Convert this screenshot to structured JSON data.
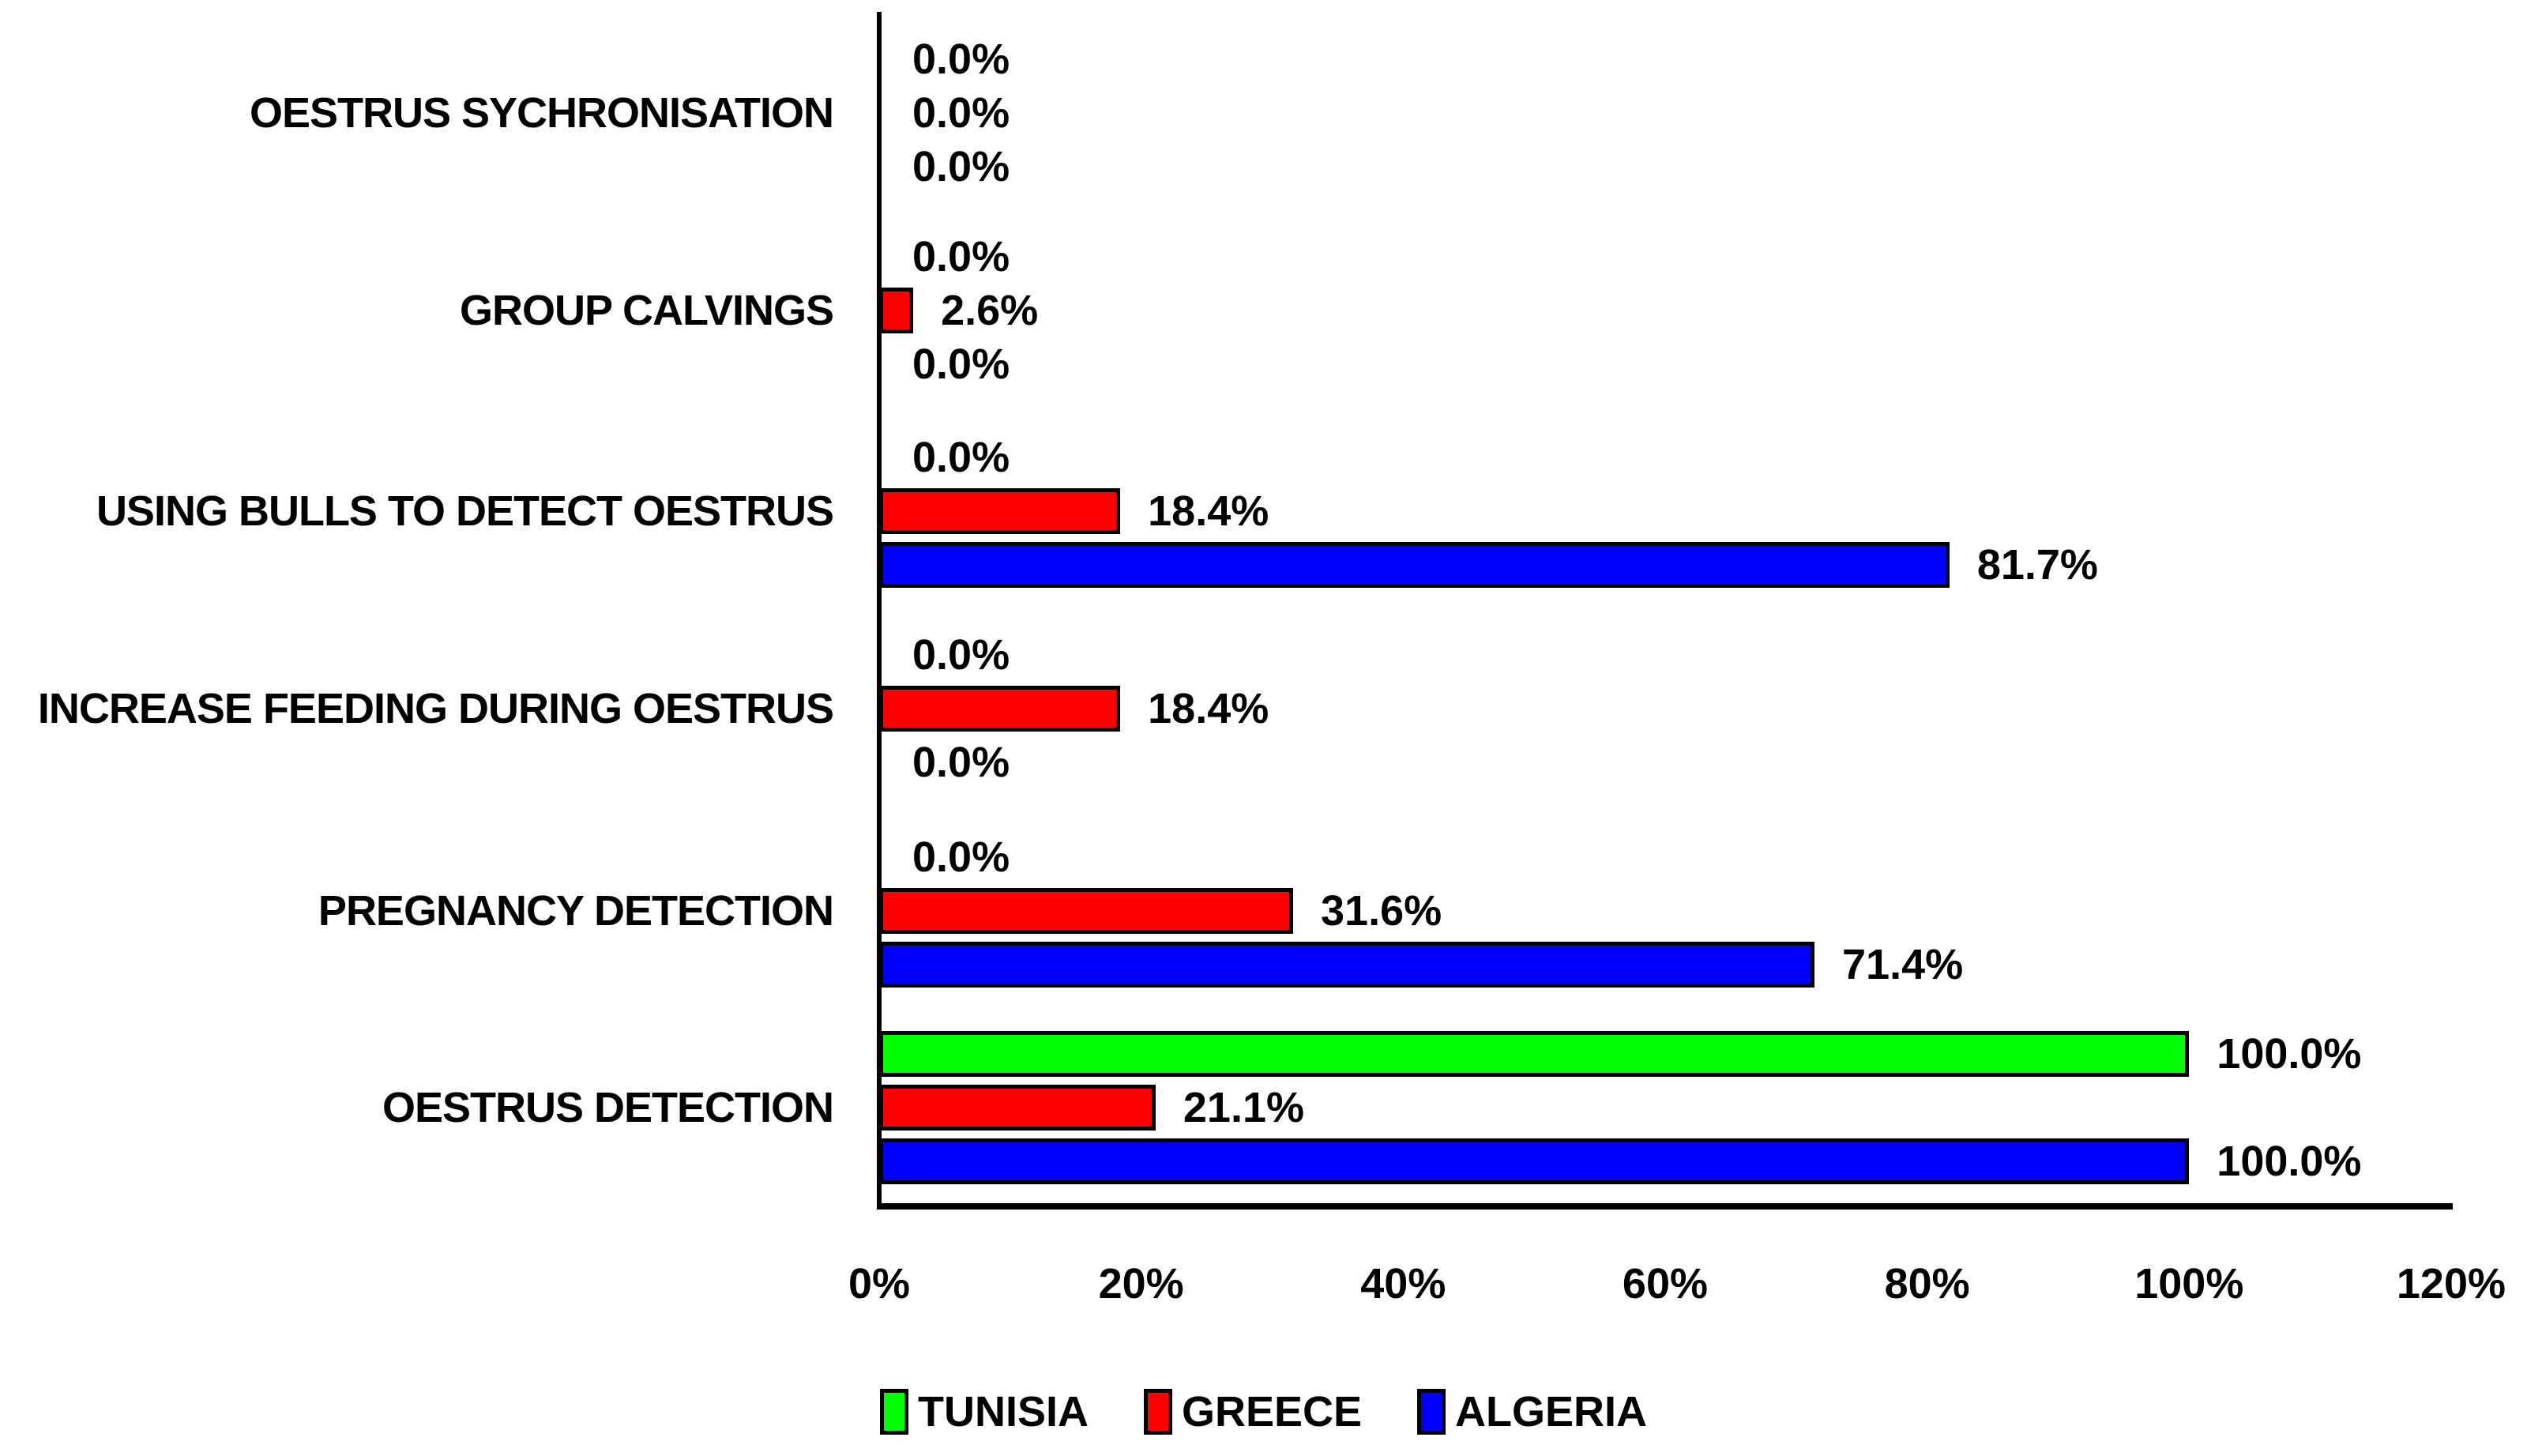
{
  "chart_data": {
    "type": "bar",
    "orientation": "horizontal",
    "title": "",
    "categories": [
      "OESTRUS SYCHRONISATION",
      "GROUP CALVINGS",
      "USING BULLS TO DETECT OESTRUS",
      "INCREASE FEEDING DURING OESTRUS",
      "PREGNANCY DETECTION",
      "OESTRUS DETECTION"
    ],
    "series": [
      {
        "name": "TUNISIA",
        "color": "#00FF00",
        "values": [
          0.0,
          0.0,
          0.0,
          0.0,
          0.0,
          100.0
        ],
        "labels": [
          "0.0%",
          "0.0%",
          "0.0%",
          "0.0%",
          "0.0%",
          "100.0%"
        ]
      },
      {
        "name": "GREECE",
        "color": "#FF0000",
        "values": [
          0.0,
          2.6,
          18.4,
          18.4,
          31.6,
          21.1
        ],
        "labels": [
          "0.0%",
          "2.6%",
          "18.4%",
          "18.4%",
          "31.6%",
          "21.1%"
        ]
      },
      {
        "name": "ALGERIA",
        "color": "#0000FF",
        "values": [
          0.0,
          0.0,
          81.7,
          0.0,
          71.4,
          100.0
        ],
        "labels": [
          "0.0%",
          "0.0%",
          "81.7%",
          "0.0%",
          "71.4%",
          "100.0%"
        ]
      }
    ],
    "x_axis": {
      "min": 0,
      "max": 120,
      "ticks": [
        {
          "value": 0,
          "label": "0%"
        },
        {
          "value": 20,
          "label": "20%"
        },
        {
          "value": 40,
          "label": "40%"
        },
        {
          "value": 60,
          "label": "60%"
        },
        {
          "value": 80,
          "label": "80%"
        },
        {
          "value": 100,
          "label": "100%"
        },
        {
          "value": 120,
          "label": "120%"
        }
      ]
    },
    "legend": {
      "position": "bottom",
      "items": [
        {
          "label": "TUNISIA",
          "color": "#00FF00"
        },
        {
          "label": "GREECE",
          "color": "#FF0000"
        },
        {
          "label": "ALGERIA",
          "color": "#0000FF"
        }
      ]
    },
    "grid": false,
    "background": "#FFFFFF",
    "axis_color": "#000000",
    "text_color": "#000000"
  }
}
